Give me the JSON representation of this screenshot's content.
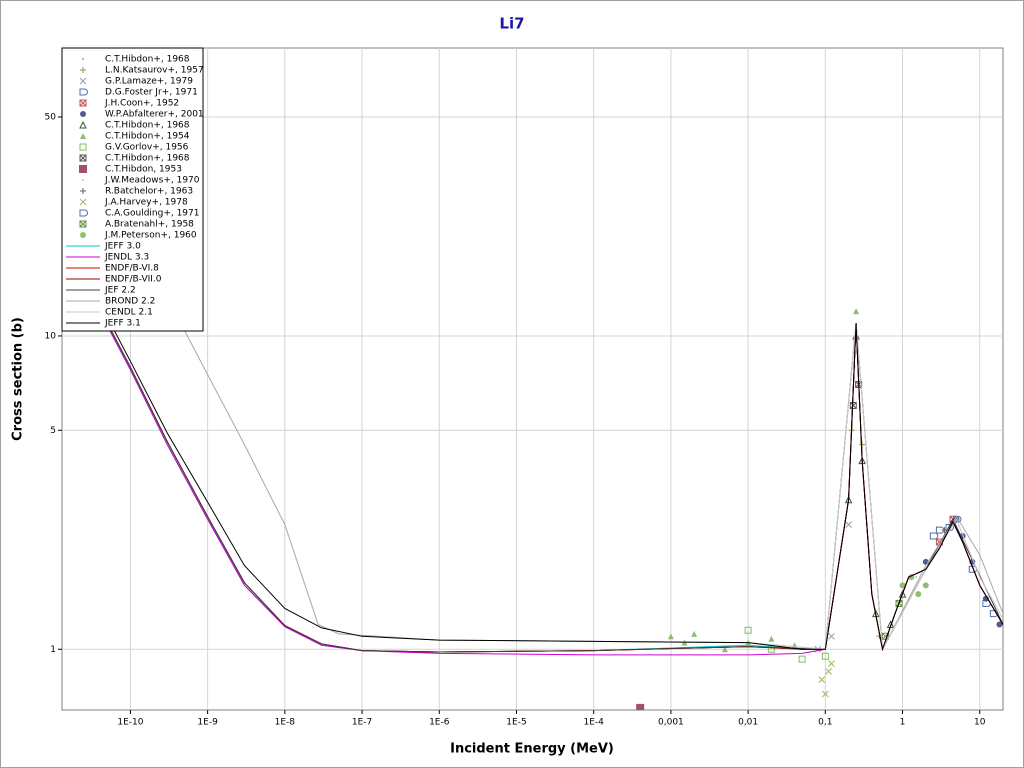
{
  "chart_data": {
    "type": "line",
    "title": "Li7",
    "x_label": "Incident Energy (MeV)",
    "y_label": "Cross section (b)",
    "xscale": "log",
    "yscale": "log",
    "grid": true,
    "legend": "upper left",
    "xlim": [
      1.3e-11,
      20
    ],
    "ylim": [
      0.64,
      83
    ],
    "xticks": [
      {
        "value": 1e-10,
        "label": "1E-10"
      },
      {
        "value": 1e-09,
        "label": "1E-9"
      },
      {
        "value": 1e-08,
        "label": "1E-8"
      },
      {
        "value": 1e-07,
        "label": "1E-7"
      },
      {
        "value": 1e-06,
        "label": "1E-6"
      },
      {
        "value": 1e-05,
        "label": "1E-5"
      },
      {
        "value": 0.0001,
        "label": "1E-4"
      },
      {
        "value": 0.001,
        "label": "0,001"
      },
      {
        "value": 0.01,
        "label": "0,01"
      },
      {
        "value": 0.1,
        "label": "0,1"
      },
      1,
      10
    ],
    "yticks": [
      1,
      5,
      10,
      50
    ],
    "series": [
      {
        "name": "C.T.Hibdon+, 1968",
        "color": "#a0a890",
        "marker": "dot",
        "x": [
          0.24,
          0.25,
          0.26
        ],
        "values": [
          8,
          12,
          9
        ]
      },
      {
        "name": "L.N.Katsaurov+, 1957",
        "color": "#8a9a5b",
        "marker": "plus",
        "x": [
          0.22,
          0.3,
          0.5
        ],
        "values": [
          5,
          4.5,
          1.1
        ]
      },
      {
        "name": "G.P.Lamaze+, 1979",
        "color": "#8aa0b0",
        "marker": "x",
        "x": [
          0.08,
          0.12,
          0.2
        ],
        "values": [
          1.0,
          1.1,
          2.5
        ]
      },
      {
        "name": "D.G.Foster Jr+, 1971",
        "color": "#4f6ea8",
        "marker": "d",
        "x": [
          2.5,
          3,
          8,
          12,
          15
        ],
        "values": [
          2.3,
          2.4,
          1.8,
          1.4,
          1.3
        ]
      },
      {
        "name": "J.H.Coon+, 1952",
        "color": "#c0504d",
        "marker": "boxx",
        "x": [
          3,
          4.5
        ],
        "values": [
          2.2,
          2.6
        ]
      },
      {
        "name": "W.P.Abfalterer+, 2001",
        "color": "#4f5b93",
        "marker": "circle",
        "x": [
          2,
          5,
          6,
          8,
          12,
          18
        ],
        "values": [
          1.9,
          2.6,
          2.3,
          1.9,
          1.45,
          1.2
        ]
      },
      {
        "name": "C.T.Hibdon+, 1968",
        "color": "#2f5f2f",
        "marker": "tri",
        "x": [
          0.2,
          0.25,
          0.3,
          0.45,
          0.7,
          1
        ],
        "values": [
          3,
          10,
          4,
          1.3,
          1.2,
          1.5
        ]
      },
      {
        "name": "C.T.Hibdon+, 1954",
        "color": "#8fbc6f",
        "marker": "trif",
        "x": [
          0.001,
          0.0015,
          0.002,
          0.005,
          0.01,
          0.02,
          0.04,
          0.25
        ],
        "values": [
          1.1,
          1.05,
          1.12,
          1.0,
          1.05,
          1.08,
          1.03,
          12
        ]
      },
      {
        "name": "G.V.Gorlov+, 1956",
        "color": "#7fbf5f",
        "marker": "square",
        "x": [
          0.01,
          0.02,
          0.05,
          0.1
        ],
        "values": [
          1.15,
          1.0,
          0.93,
          0.95
        ]
      },
      {
        "name": "C.T.Hibdon+, 1968",
        "color": "#555555",
        "marker": "boxx",
        "x": [
          0.23,
          0.27
        ],
        "values": [
          6,
          7
        ]
      },
      {
        "name": "C.T.Hibdon, 1953",
        "color": "#a05070",
        "marker": "squaref",
        "x": [
          0.0004
        ],
        "values": [
          0.65
        ]
      },
      {
        "name": "J.W.Meadows+, 1970",
        "color": "#c0c0c0",
        "marker": "dot",
        "x": [
          1.5,
          2
        ],
        "values": [
          1.7,
          1.8
        ]
      },
      {
        "name": "R.Batchelor+, 1963",
        "color": "#606060",
        "marker": "plus",
        "x": [
          3.5,
          4.2
        ],
        "values": [
          2.4,
          2.5
        ]
      },
      {
        "name": "J.A.Harvey+, 1978",
        "color": "#9bbb59",
        "marker": "x",
        "x": [
          0.09,
          0.1,
          0.11,
          0.12
        ],
        "values": [
          0.8,
          0.72,
          0.85,
          0.9
        ]
      },
      {
        "name": "C.A.Goulding+, 1971",
        "color": "#4f6ea8",
        "marker": "d",
        "x": [
          4,
          5
        ],
        "values": [
          2.45,
          2.6
        ]
      },
      {
        "name": "A.Bratenahl+, 1958",
        "color": "#5f8f3f",
        "marker": "boxx",
        "x": [
          0.6,
          0.9
        ],
        "values": [
          1.1,
          1.4
        ]
      },
      {
        "name": "J.M.Peterson+, 1960",
        "color": "#8fbf6f",
        "marker": "circle",
        "x": [
          1,
          1.3,
          1.6,
          2
        ],
        "values": [
          1.6,
          1.7,
          1.5,
          1.6
        ]
      },
      {
        "name": "JEFF 3.0",
        "color": "#00c8d0",
        "line": true,
        "x": [
          5e-11,
          1e-10,
          3e-10,
          1e-09,
          3e-09,
          1e-08,
          3e-08,
          1e-07,
          1e-06,
          0.0001,
          0.01,
          0.05,
          0.1,
          0.2,
          0.25,
          0.3,
          0.4,
          0.55,
          0.8,
          1.2,
          2,
          3,
          4.5,
          6,
          10,
          20
        ],
        "values": [
          10.8,
          7.8,
          4.5,
          2.6,
          1.6,
          1.18,
          1.03,
          0.99,
          0.98,
          0.99,
          1.03,
          1.0,
          1.0,
          3,
          11,
          4,
          1.5,
          1.0,
          1.3,
          1.7,
          1.8,
          2.1,
          2.55,
          2.2,
          1.6,
          1.2
        ]
      },
      {
        "name": "JENDL 3.3",
        "color": "#d000d0",
        "line": true,
        "x": [
          5e-11,
          1e-10,
          3e-10,
          1e-09,
          3e-09,
          1e-08,
          3e-08,
          1e-07,
          1e-06,
          0.0001,
          0.01,
          0.05,
          0.1,
          0.2,
          0.25,
          0.3,
          0.4,
          0.55,
          0.8,
          1.2,
          2,
          3,
          4.5,
          6,
          10,
          20
        ],
        "values": [
          10.8,
          7.8,
          4.5,
          2.6,
          1.6,
          1.18,
          1.03,
          0.99,
          0.97,
          0.96,
          0.96,
          0.97,
          1.0,
          3,
          11,
          4,
          1.5,
          1.0,
          1.3,
          1.7,
          1.8,
          2.1,
          2.55,
          2.2,
          1.6,
          1.2
        ]
      },
      {
        "name": "ENDF/B-VI.8",
        "color": "#e00000",
        "line": true,
        "x": [
          5e-11,
          1e-10,
          3e-10,
          1e-09,
          3e-09,
          1e-08,
          3e-08,
          1e-07,
          1e-06,
          0.0001,
          0.01,
          0.05,
          0.1,
          0.2,
          0.25,
          0.3,
          0.4,
          0.55,
          0.8,
          1.2,
          2,
          3,
          4.5,
          6,
          10,
          20
        ],
        "values": [
          11,
          7.95,
          4.6,
          2.65,
          1.63,
          1.19,
          1.04,
          0.99,
          0.98,
          0.99,
          1.02,
          1.0,
          1.0,
          3,
          11,
          4,
          1.5,
          1.0,
          1.3,
          1.7,
          1.8,
          2.1,
          2.6,
          2.2,
          1.6,
          1.2
        ]
      },
      {
        "name": "ENDF/B-VII.0",
        "color": "#900000",
        "line": true,
        "x": [
          5e-11,
          1e-10,
          3e-10,
          1e-09,
          3e-09,
          1e-08,
          3e-08,
          1e-07,
          1e-06,
          0.0001,
          0.01,
          0.05,
          0.1,
          0.2,
          0.25,
          0.3,
          0.4,
          0.55,
          0.8,
          1.2,
          2,
          3,
          4.5,
          6,
          10,
          20
        ],
        "values": [
          11,
          7.95,
          4.6,
          2.65,
          1.63,
          1.19,
          1.04,
          0.99,
          0.98,
          0.99,
          1.02,
          1.0,
          1.0,
          3,
          11,
          4,
          1.5,
          1.0,
          1.3,
          1.7,
          1.8,
          2.1,
          2.6,
          2.2,
          1.6,
          1.2
        ]
      },
      {
        "name": "JEF 2.2",
        "color": "#404040",
        "line": true,
        "x": [
          5e-11,
          1e-10,
          3e-10,
          1e-09,
          3e-09,
          1e-08,
          3e-08,
          1e-07,
          1e-06,
          0.0001,
          0.01,
          0.1,
          0.25,
          0.55,
          2,
          4.5,
          20
        ],
        "values": [
          11,
          7.95,
          4.6,
          2.65,
          1.63,
          1.19,
          1.04,
          0.99,
          0.98,
          0.99,
          1.02,
          1.0,
          11,
          1.0,
          1.8,
          2.6,
          1.2
        ]
      },
      {
        "name": "BROND 2.2",
        "color": "#a8a8a8",
        "line": true,
        "x": [
          1.5e-10,
          3.7e-10,
          3e-09,
          1e-08,
          2.7e-08,
          5e-08,
          1e-06,
          0.0001,
          0.01,
          0.1,
          0.25,
          0.55,
          2,
          5,
          10,
          20
        ],
        "values": [
          20,
          12,
          4.5,
          2.5,
          1.2,
          1.12,
          1.07,
          1.06,
          1.05,
          1.0,
          11,
          1.0,
          1.85,
          2.65,
          2.0,
          1.3
        ]
      },
      {
        "name": "CENDL 2.1",
        "color": "#c8c8c8",
        "line": true,
        "x": [
          1e-06,
          0.0001,
          0.01,
          0.1,
          0.25,
          0.55,
          2,
          5,
          10,
          20
        ],
        "values": [
          1.07,
          1.06,
          1.05,
          1.0,
          11,
          1.0,
          1.8,
          2.6,
          1.7,
          1.25
        ]
      },
      {
        "name": "JEFF 3.1",
        "color": "#000000",
        "line": true,
        "x": [
          5e-11,
          1e-10,
          3e-10,
          1e-09,
          3e-09,
          1e-08,
          3e-08,
          1e-07,
          1e-06,
          0.0001,
          0.01,
          0.05,
          0.1,
          0.2,
          0.25,
          0.3,
          0.4,
          0.55,
          0.8,
          1.2,
          2,
          3,
          4.5,
          6,
          10,
          20
        ],
        "values": [
          11.5,
          8.3,
          4.9,
          2.95,
          1.85,
          1.35,
          1.17,
          1.1,
          1.07,
          1.06,
          1.05,
          1.0,
          1.0,
          3,
          11,
          4,
          1.5,
          1.0,
          1.3,
          1.7,
          1.8,
          2.1,
          2.55,
          2.2,
          1.6,
          1.2
        ]
      }
    ]
  }
}
